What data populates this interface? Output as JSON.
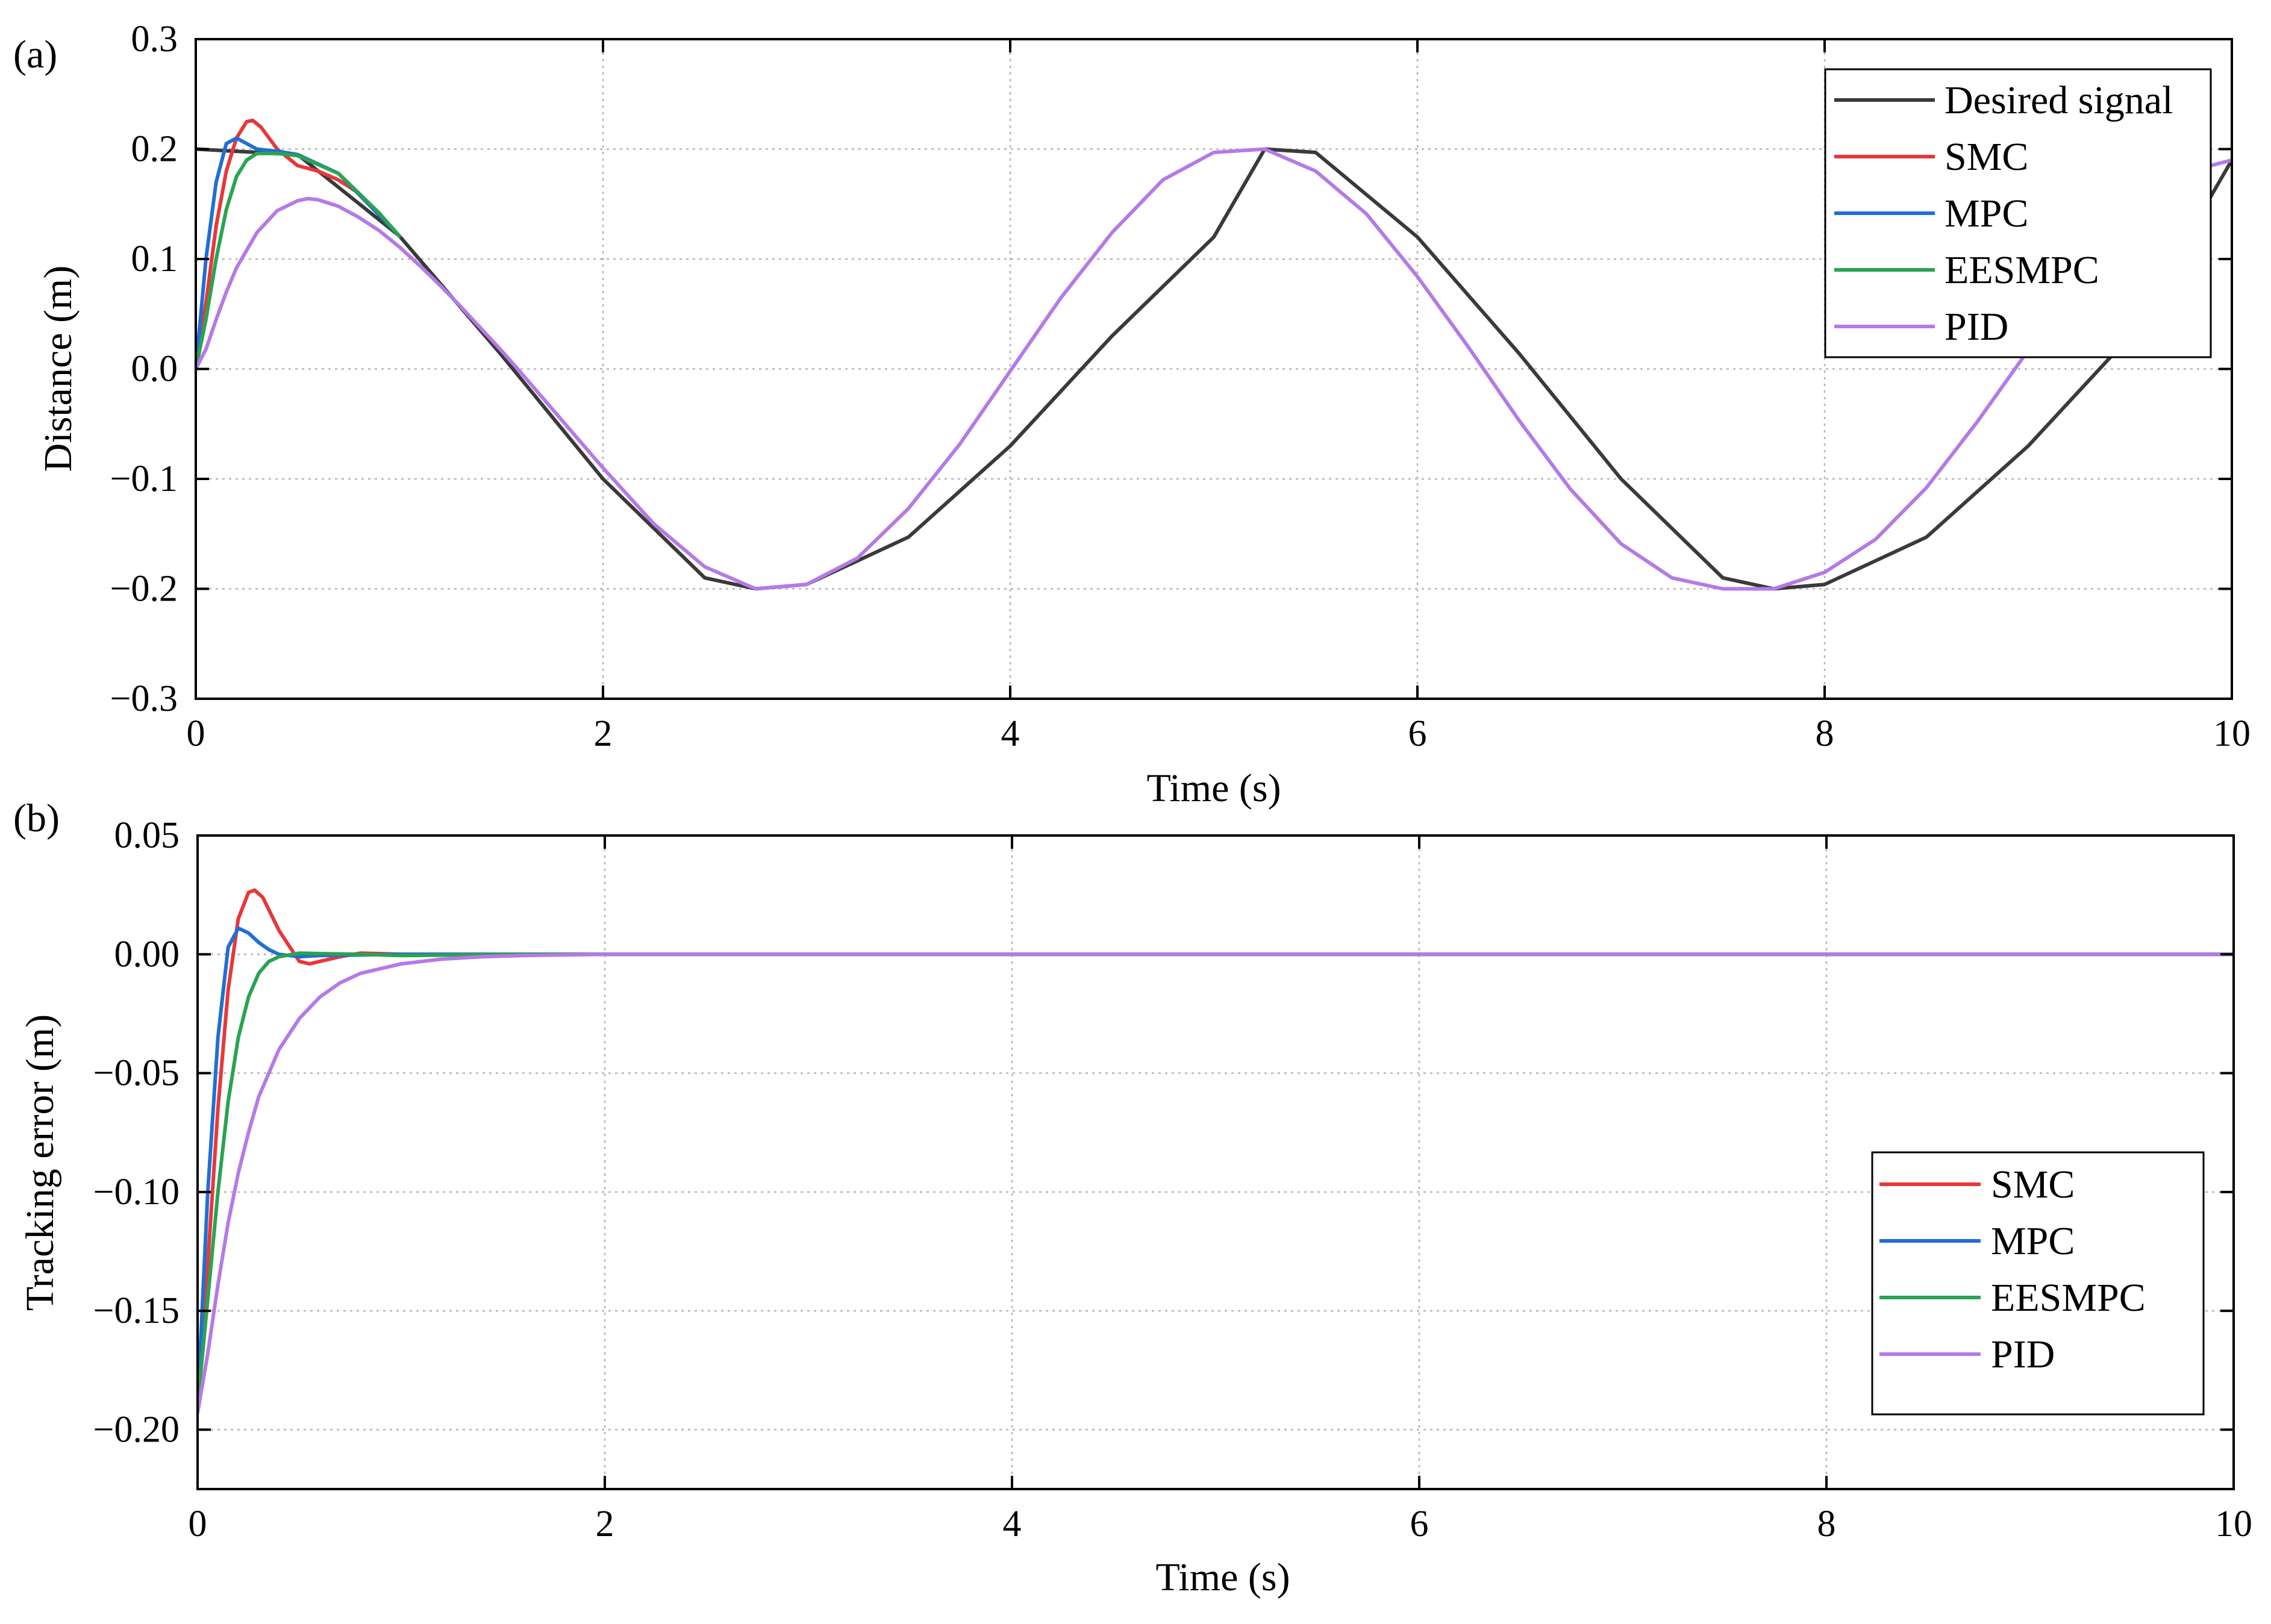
{
  "figure": {
    "panels": [
      "(a)",
      "(b)"
    ]
  },
  "colors": {
    "desired": "#3a3a3a",
    "smc": "#e8373a",
    "mpc": "#1f6fd6",
    "eesmpc": "#2aa352",
    "pid": "#b57ae6",
    "grid": "#b5b5b5",
    "axis": "#000000"
  },
  "chart_data": [
    {
      "type": "line",
      "panel_label": "(a)",
      "xlabel": "Time (s)",
      "ylabel": "Distance (m)",
      "xlim": [
        0,
        10
      ],
      "ylim": [
        -0.3,
        0.3
      ],
      "xticks": [
        0,
        2,
        4,
        6,
        8,
        10
      ],
      "xtick_labels": [
        "0",
        "2",
        "4",
        "6",
        "8",
        "10"
      ],
      "yticks": [
        -0.3,
        -0.2,
        -0.1,
        0.0,
        0.1,
        0.2,
        0.3
      ],
      "ytick_labels": [
        "−0.3",
        "−0.2",
        "−0.1",
        "0.0",
        "0.1",
        "0.2",
        "0.3"
      ],
      "grid": true,
      "legend_position": "top-right",
      "series": [
        {
          "name": "Desired signal",
          "color_key": "desired",
          "x": [
            0,
            0.5,
            1,
            1.5,
            2,
            2.5,
            2.75,
            3,
            3.5,
            4,
            4.5,
            5,
            5.25,
            5.5,
            6,
            6.5,
            7,
            7.5,
            7.75,
            8,
            8.5,
            9,
            9.5,
            10
          ],
          "y": [
            0.2,
            0.195,
            0.121,
            0.013,
            -0.1,
            -0.19,
            -0.2,
            -0.196,
            -0.153,
            -0.07,
            0.03,
            0.12,
            0.2,
            0.197,
            0.12,
            0.014,
            -0.1,
            -0.19,
            -0.2,
            -0.196,
            -0.153,
            -0.07,
            0.03,
            0.19
          ]
        },
        {
          "name": "SMC",
          "color_key": "smc",
          "x": [
            0,
            0.05,
            0.1,
            0.15,
            0.2,
            0.25,
            0.28,
            0.32,
            0.4,
            0.5,
            0.6,
            0.7,
            0.8,
            1.0
          ],
          "y": [
            0,
            0.06,
            0.13,
            0.18,
            0.21,
            0.225,
            0.226,
            0.22,
            0.2,
            0.185,
            0.18,
            0.172,
            0.16,
            0.121
          ]
        },
        {
          "name": "MPC",
          "color_key": "mpc",
          "x": [
            0,
            0.05,
            0.1,
            0.15,
            0.2,
            0.25,
            0.3,
            0.4,
            0.5,
            0.7,
            1.0
          ],
          "y": [
            0,
            0.1,
            0.17,
            0.205,
            0.21,
            0.205,
            0.2,
            0.198,
            0.195,
            0.178,
            0.121
          ]
        },
        {
          "name": "EESMPC",
          "color_key": "eesmpc",
          "x": [
            0,
            0.05,
            0.1,
            0.15,
            0.2,
            0.25,
            0.3,
            0.4,
            0.5,
            0.7,
            0.9,
            1.0
          ],
          "y": [
            0,
            0.045,
            0.1,
            0.145,
            0.175,
            0.19,
            0.196,
            0.196,
            0.194,
            0.178,
            0.142,
            0.121
          ]
        },
        {
          "name": "PID",
          "color_key": "pid",
          "x": [
            0,
            0.05,
            0.1,
            0.15,
            0.2,
            0.3,
            0.4,
            0.5,
            0.55,
            0.6,
            0.7,
            0.8,
            0.9,
            1.0,
            1.1,
            1.2,
            1.3,
            1.4,
            1.5,
            1.6,
            1.8,
            2.0,
            2.25,
            2.5,
            2.75,
            3.0,
            3.25,
            3.5,
            3.75,
            4.0,
            4.25,
            4.5,
            4.75,
            5.0,
            5.25,
            5.5,
            5.75,
            6.0,
            6.25,
            6.5,
            6.75,
            7.0,
            7.25,
            7.5,
            7.75,
            8.0,
            8.25,
            8.5,
            8.75,
            9.0,
            9.25,
            9.5,
            9.75,
            10.0
          ],
          "y": [
            0,
            0.018,
            0.045,
            0.07,
            0.092,
            0.124,
            0.144,
            0.153,
            0.155,
            0.154,
            0.148,
            0.138,
            0.126,
            0.111,
            0.094,
            0.076,
            0.057,
            0.037,
            0.017,
            -0.004,
            -0.047,
            -0.09,
            -0.141,
            -0.18,
            -0.2,
            -0.196,
            -0.172,
            -0.127,
            -0.069,
            -0.002,
            0.065,
            0.124,
            0.172,
            0.197,
            0.2,
            0.18,
            0.141,
            0.084,
            0.02,
            -0.047,
            -0.109,
            -0.159,
            -0.19,
            -0.2,
            -0.2,
            -0.185,
            -0.155,
            -0.108,
            -0.048,
            0.017,
            0.081,
            0.136,
            0.178,
            0.19
          ]
        }
      ]
    },
    {
      "type": "line",
      "panel_label": "(b)",
      "xlabel": "Time (s)",
      "ylabel": "Tracking error (m)",
      "xlim": [
        0,
        10
      ],
      "ylim": [
        -0.225,
        0.05
      ],
      "xticks": [
        0,
        2,
        4,
        6,
        8,
        10
      ],
      "xtick_labels": [
        "0",
        "2",
        "4",
        "6",
        "8",
        "10"
      ],
      "yticks": [
        -0.2,
        -0.15,
        -0.1,
        -0.05,
        0.0,
        0.05
      ],
      "ytick_labels": [
        "−0.20",
        "−0.15",
        "−0.10",
        "−0.05",
        "0.00",
        "0.05"
      ],
      "grid": true,
      "legend_position": "lower-right",
      "series": [
        {
          "name": "SMC",
          "color_key": "smc",
          "x": [
            0,
            0.05,
            0.1,
            0.15,
            0.2,
            0.25,
            0.28,
            0.32,
            0.4,
            0.5,
            0.55,
            0.6,
            0.7,
            0.8,
            0.9,
            1.0,
            10
          ],
          "y": [
            -0.19,
            -0.13,
            -0.065,
            -0.015,
            0.015,
            0.026,
            0.027,
            0.024,
            0.01,
            -0.003,
            -0.004,
            -0.003,
            -0.001,
            0.0005,
            0.0003,
            0,
            0
          ]
        },
        {
          "name": "MPC",
          "color_key": "mpc",
          "x": [
            0,
            0.05,
            0.1,
            0.15,
            0.2,
            0.25,
            0.3,
            0.35,
            0.4,
            0.5,
            0.6,
            1.0,
            10
          ],
          "y": [
            -0.19,
            -0.1,
            -0.035,
            0.003,
            0.011,
            0.009,
            0.005,
            0.002,
            0.0,
            -0.001,
            -0.0005,
            0,
            0
          ]
        },
        {
          "name": "EESMPC",
          "color_key": "eesmpc",
          "x": [
            0,
            0.05,
            0.1,
            0.15,
            0.2,
            0.25,
            0.3,
            0.35,
            0.4,
            0.5,
            0.6,
            0.8,
            1.0,
            1.6,
            10
          ],
          "y": [
            -0.19,
            -0.145,
            -0.1,
            -0.062,
            -0.035,
            -0.018,
            -0.008,
            -0.003,
            -0.001,
            0.0005,
            0.0003,
            0.0,
            -0.0005,
            0,
            0
          ]
        },
        {
          "name": "PID",
          "color_key": "pid",
          "x": [
            0,
            0.05,
            0.1,
            0.15,
            0.2,
            0.25,
            0.3,
            0.4,
            0.5,
            0.6,
            0.7,
            0.8,
            1.0,
            1.2,
            1.4,
            1.6,
            2.0,
            10
          ],
          "y": [
            -0.193,
            -0.168,
            -0.139,
            -0.113,
            -0.092,
            -0.075,
            -0.06,
            -0.04,
            -0.027,
            -0.018,
            -0.012,
            -0.008,
            -0.004,
            -0.002,
            -0.001,
            -0.0005,
            0,
            0
          ]
        }
      ]
    }
  ]
}
